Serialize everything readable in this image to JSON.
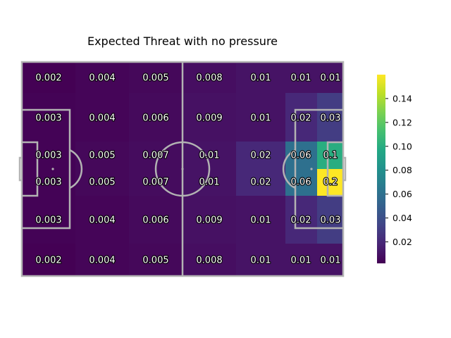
{
  "chart_data": {
    "type": "heatmap",
    "title": "Expected Threat with no pressure",
    "rows": 6,
    "cols": 7,
    "values": [
      [
        0.002,
        0.004,
        0.005,
        0.008,
        0.01,
        0.01,
        0.01
      ],
      [
        0.003,
        0.004,
        0.006,
        0.009,
        0.01,
        0.02,
        0.03
      ],
      [
        0.003,
        0.005,
        0.007,
        0.01,
        0.02,
        0.06,
        0.1
      ],
      [
        0.003,
        0.005,
        0.007,
        0.01,
        0.02,
        0.06,
        0.2
      ],
      [
        0.003,
        0.004,
        0.006,
        0.009,
        0.01,
        0.02,
        0.03
      ],
      [
        0.002,
        0.004,
        0.005,
        0.008,
        0.01,
        0.01,
        0.01
      ]
    ],
    "labels": [
      [
        "0.002",
        "0.004",
        "0.005",
        "0.008",
        "0.01",
        "0.01",
        "0.01"
      ],
      [
        "0.003",
        "0.004",
        "0.006",
        "0.009",
        "0.01",
        "0.02",
        "0.03"
      ],
      [
        "0.003",
        "0.005",
        "0.007",
        "0.01",
        "0.02",
        "0.06",
        "0.1"
      ],
      [
        "0.003",
        "0.005",
        "0.007",
        "0.01",
        "0.02",
        "0.06",
        "0.2"
      ],
      [
        "0.003",
        "0.004",
        "0.006",
        "0.009",
        "0.01",
        "0.02",
        "0.03"
      ],
      [
        "0.002",
        "0.004",
        "0.005",
        "0.008",
        "0.01",
        "0.01",
        "0.01"
      ]
    ],
    "colormap": "viridis",
    "colorbar": {
      "range": [
        0.002,
        0.16
      ],
      "ticks": [
        0.02,
        0.04,
        0.06,
        0.08,
        0.1,
        0.12,
        0.14
      ],
      "tick_labels": [
        "0.02",
        "0.04",
        "0.06",
        "0.08",
        "0.10",
        "0.12",
        "0.14"
      ]
    },
    "grid": false
  }
}
